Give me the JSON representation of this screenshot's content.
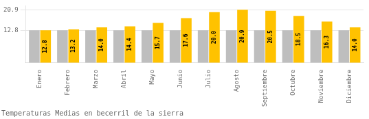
{
  "chart_data": {
    "type": "bar",
    "title": "Temperaturas Medias en becerril de la sierra",
    "categories": [
      "Enero",
      "Febrero",
      "Marzo",
      "Abril",
      "Mayo",
      "Junio",
      "Julio",
      "Agosto",
      "Septiembre",
      "Octubre",
      "Noviembre",
      "Diciembre"
    ],
    "series": [
      {
        "color": "#BEBEBE",
        "values": [
          12.8,
          12.8,
          12.8,
          12.8,
          12.8,
          12.8,
          12.8,
          12.8,
          12.8,
          12.8,
          12.8,
          12.8
        ]
      },
      {
        "color": "#FFC200",
        "values": [
          12.8,
          13.2,
          14.0,
          14.4,
          15.7,
          17.6,
          20.0,
          20.9,
          20.5,
          18.5,
          16.3,
          14.0
        ],
        "data_labels": true,
        "value_labels": [
          "12.8",
          "13.2",
          "14.0",
          "14.4",
          "15.7",
          "17.6",
          "20.0",
          "20.9",
          "20.5",
          "18.5",
          "16.3",
          "14.0"
        ]
      }
    ],
    "ylim": [
      0,
      22.5
    ],
    "yticks": [
      12.8,
      20.9
    ],
    "grid": true
  }
}
